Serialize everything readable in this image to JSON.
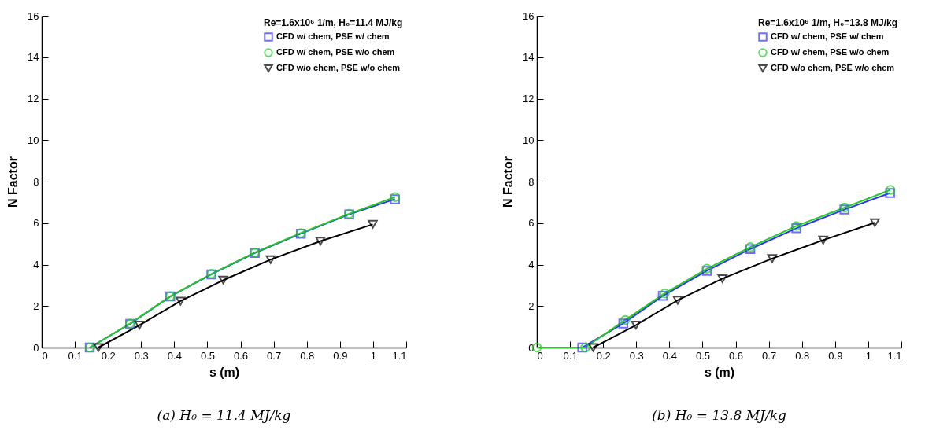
{
  "chart_data": [
    {
      "type": "line",
      "title": "(a) H₀ = 11.4 MJ/kg",
      "xlabel": "s (m)",
      "ylabel": "N Factor",
      "legend_title": "Re=1.6x10⁶ 1/m, H₀=11.4 MJ/kg",
      "legend": "top right",
      "xlim": [
        0,
        1.1
      ],
      "xticks": [
        0,
        0.1,
        0.2,
        0.3,
        0.4,
        0.5,
        0.6,
        0.7,
        0.8,
        0.9,
        1,
        1.1
      ],
      "ylim": [
        0,
        16
      ],
      "yticks": [
        0,
        2,
        4,
        6,
        8,
        10,
        12,
        14,
        16
      ],
      "grid": false,
      "series": [
        {
          "name": "CFD w/ chem, PSE w/ chem",
          "color": "#3333ff",
          "marker": "square",
          "x": [
            0.145,
            0.267,
            0.388,
            0.512,
            0.643,
            0.782,
            0.928,
            1.066
          ],
          "values": [
            0,
            1.14,
            2.46,
            3.53,
            4.56,
            5.49,
            6.42,
            7.15
          ]
        },
        {
          "name": "CFD w/ chem, PSE w/o chem",
          "color": "#22cc22",
          "marker": "circle",
          "x": [
            0.145,
            0.267,
            0.388,
            0.512,
            0.643,
            0.782,
            0.928,
            1.066
          ],
          "values": [
            0,
            1.16,
            2.47,
            3.55,
            4.58,
            5.52,
            6.45,
            7.25
          ]
        },
        {
          "name": "CFD w/o chem, PSE w/o chem",
          "color": "#000000",
          "marker": "triangle",
          "x": [
            0.171,
            0.295,
            0.419,
            0.548,
            0.691,
            0.841,
            0.999
          ],
          "values": [
            0,
            1.08,
            2.24,
            3.25,
            4.24,
            5.13,
            5.94
          ]
        }
      ]
    },
    {
      "type": "line",
      "title": "(b) H₀ = 13.8 MJ/kg",
      "xlabel": "s (m)",
      "ylabel": "N Factor",
      "legend_title": "Re=1.6x10⁶ 1/m, H₀=13.8 MJ/kg",
      "legend": "top right",
      "xlim": [
        0,
        1.1
      ],
      "xticks": [
        0,
        0.1,
        0.2,
        0.3,
        0.4,
        0.5,
        0.6,
        0.7,
        0.8,
        0.9,
        1,
        1.1
      ],
      "ylim": [
        0,
        16
      ],
      "yticks": [
        0,
        2,
        4,
        6,
        8,
        10,
        12,
        14,
        16
      ],
      "grid": false,
      "series": [
        {
          "name": "CFD w/ chem, PSE w/ chem",
          "color": "#3333ff",
          "marker": "square",
          "x": [
            0.137,
            0.261,
            0.38,
            0.513,
            0.644,
            0.783,
            0.928,
            1.066
          ],
          "values": [
            0,
            1.16,
            2.49,
            3.7,
            4.75,
            5.75,
            6.65,
            7.45
          ]
        },
        {
          "name": "CFD w/ chem, PSE w/o chem",
          "color": "#22cc22",
          "marker": "circle",
          "x": [
            0,
            0.146,
            0.267,
            0.386,
            0.513,
            0.644,
            0.783,
            0.929,
            1.067
          ],
          "values": [
            0,
            0,
            1.33,
            2.61,
            3.8,
            4.84,
            5.86,
            6.75,
            7.6
          ]
        },
        {
          "name": "CFD w/o chem, PSE w/o chem",
          "color": "#000000",
          "marker": "triangle",
          "x": [
            0.17,
            0.299,
            0.425,
            0.56,
            0.71,
            0.864,
            1.02
          ],
          "values": [
            0,
            1.08,
            2.28,
            3.32,
            4.29,
            5.18,
            6.02
          ]
        }
      ]
    }
  ]
}
